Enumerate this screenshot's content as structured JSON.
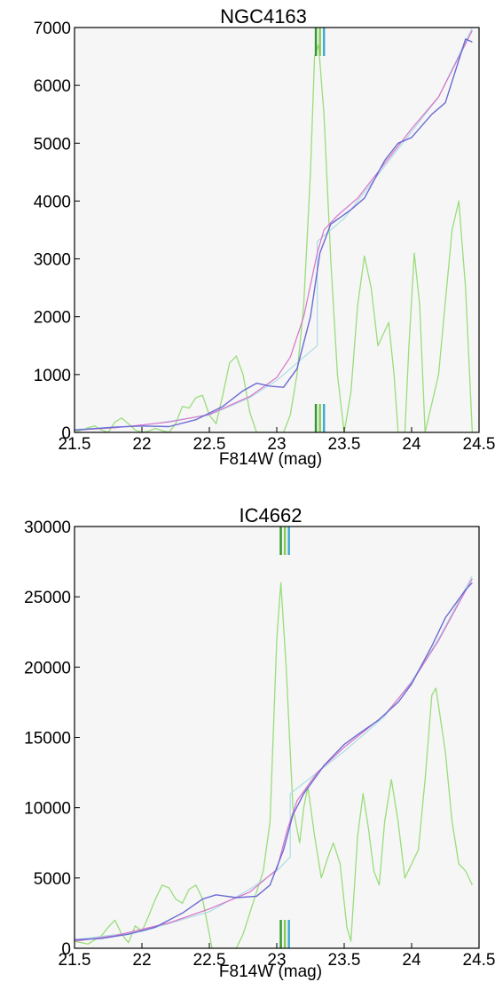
{
  "chart_data": [
    {
      "type": "line",
      "title": "NGC4163",
      "xlabel": "F814W (mag)",
      "ylabel": "",
      "xlim": [
        21.5,
        24.5
      ],
      "ylim": [
        0,
        7000
      ],
      "xticks": [
        "21.5",
        "22",
        "22.5",
        "23",
        "23.5",
        "24",
        "24.5"
      ],
      "xtick_values": [
        21.5,
        22,
        22.5,
        23,
        23.5,
        24,
        24.5
      ],
      "yticks": [
        "0",
        "1000",
        "2000",
        "3000",
        "4000",
        "5000",
        "6000",
        "7000"
      ],
      "ytick_values": [
        0,
        1000,
        2000,
        3000,
        4000,
        5000,
        6000,
        7000
      ],
      "grid": false,
      "background": "#f6f6f6",
      "series": [
        {
          "color": "#99dd7a",
          "width": 1.3,
          "points": [
            [
              21.5,
              0
            ],
            [
              21.6,
              80
            ],
            [
              21.65,
              110
            ],
            [
              21.7,
              40
            ],
            [
              21.75,
              0
            ],
            [
              21.8,
              180
            ],
            [
              21.85,
              250
            ],
            [
              21.9,
              150
            ],
            [
              21.95,
              40
            ],
            [
              22.0,
              0
            ],
            [
              22.05,
              20
            ],
            [
              22.1,
              70
            ],
            [
              22.15,
              30
            ],
            [
              22.2,
              0
            ],
            [
              22.25,
              150
            ],
            [
              22.3,
              450
            ],
            [
              22.35,
              420
            ],
            [
              22.4,
              600
            ],
            [
              22.45,
              640
            ],
            [
              22.5,
              300
            ],
            [
              22.55,
              150
            ],
            [
              22.6,
              650
            ],
            [
              22.65,
              1200
            ],
            [
              22.7,
              1320
            ],
            [
              22.75,
              1000
            ],
            [
              22.8,
              350
            ],
            [
              22.85,
              0
            ],
            [
              23.05,
              0
            ],
            [
              23.1,
              300
            ],
            [
              23.15,
              1000
            ],
            [
              23.2,
              2200
            ],
            [
              23.25,
              4500
            ],
            [
              23.28,
              6500
            ],
            [
              23.31,
              6700
            ],
            [
              23.35,
              5500
            ],
            [
              23.4,
              3000
            ],
            [
              23.45,
              1000
            ],
            [
              23.5,
              0
            ],
            [
              23.55,
              700
            ],
            [
              23.6,
              2200
            ],
            [
              23.65,
              3050
            ],
            [
              23.7,
              2500
            ],
            [
              23.75,
              1500
            ],
            [
              23.8,
              1750
            ],
            [
              23.83,
              1900
            ],
            [
              23.87,
              1000
            ],
            [
              23.9,
              0
            ],
            [
              23.95,
              0
            ],
            [
              23.98,
              1500
            ],
            [
              24.02,
              3100
            ],
            [
              24.06,
              2200
            ],
            [
              24.1,
              0
            ],
            [
              24.2,
              1000
            ],
            [
              24.3,
              3500
            ],
            [
              24.35,
              4000
            ],
            [
              24.4,
              2500
            ],
            [
              24.45,
              0
            ]
          ]
        },
        {
          "color": "#aadde6",
          "width": 1.2,
          "points": [
            [
              21.5,
              50
            ],
            [
              22.0,
              120
            ],
            [
              22.5,
              300
            ],
            [
              22.8,
              600
            ],
            [
              23.0,
              900
            ],
            [
              23.2,
              1300
            ],
            [
              23.3,
              1500
            ],
            [
              23.3,
              3300
            ],
            [
              23.4,
              3500
            ],
            [
              23.5,
              3700
            ],
            [
              23.6,
              4000
            ],
            [
              23.8,
              4600
            ],
            [
              24.0,
              5200
            ],
            [
              24.2,
              5800
            ],
            [
              24.45,
              7000
            ]
          ]
        },
        {
          "color": "#d873c8",
          "width": 1.2,
          "points": [
            [
              21.5,
              40
            ],
            [
              21.8,
              80
            ],
            [
              22.2,
              180
            ],
            [
              22.5,
              310
            ],
            [
              22.8,
              620
            ],
            [
              23.0,
              950
            ],
            [
              23.1,
              1300
            ],
            [
              23.2,
              2000
            ],
            [
              23.3,
              3100
            ],
            [
              23.35,
              3500
            ],
            [
              23.45,
              3750
            ],
            [
              23.6,
              4050
            ],
            [
              23.8,
              4650
            ],
            [
              24.0,
              5250
            ],
            [
              24.2,
              5800
            ],
            [
              24.45,
              6950
            ]
          ]
        },
        {
          "color": "#6b6bd4",
          "width": 1.4,
          "points": [
            [
              21.5,
              40
            ],
            [
              21.8,
              90
            ],
            [
              22.0,
              110
            ],
            [
              22.2,
              100
            ],
            [
              22.4,
              220
            ],
            [
              22.6,
              450
            ],
            [
              22.75,
              720
            ],
            [
              22.85,
              850
            ],
            [
              22.95,
              800
            ],
            [
              23.05,
              780
            ],
            [
              23.15,
              1100
            ],
            [
              23.25,
              2000
            ],
            [
              23.32,
              3100
            ],
            [
              23.4,
              3600
            ],
            [
              23.55,
              3850
            ],
            [
              23.65,
              4050
            ],
            [
              23.8,
              4700
            ],
            [
              23.9,
              5000
            ],
            [
              24.0,
              5100
            ],
            [
              24.15,
              5500
            ],
            [
              24.25,
              5700
            ],
            [
              24.4,
              6800
            ],
            [
              24.45,
              6750
            ]
          ]
        }
      ],
      "markers": [
        {
          "x": 23.29,
          "color": "#339933"
        },
        {
          "x": 23.32,
          "color": "#88cc55"
        },
        {
          "x": 23.35,
          "color": "#44aacc"
        }
      ]
    },
    {
      "type": "line",
      "title": "IC4662",
      "xlabel": "F814W (mag)",
      "ylabel": "",
      "xlim": [
        21.5,
        24.5
      ],
      "ylim": [
        0,
        30000
      ],
      "xticks": [
        "21.5",
        "22",
        "22.5",
        "23",
        "23.5",
        "24",
        "24.5"
      ],
      "xtick_values": [
        21.5,
        22,
        22.5,
        23,
        23.5,
        24,
        24.5
      ],
      "yticks": [
        "0",
        "5000",
        "10000",
        "15000",
        "20000",
        "25000",
        "30000"
      ],
      "ytick_values": [
        0,
        5000,
        10000,
        15000,
        20000,
        25000,
        30000
      ],
      "grid": false,
      "background": "#f6f6f6",
      "series": [
        {
          "color": "#99dd7a",
          "width": 1.3,
          "points": [
            [
              21.5,
              500
            ],
            [
              21.6,
              300
            ],
            [
              21.7,
              900
            ],
            [
              21.75,
              1500
            ],
            [
              21.8,
              2000
            ],
            [
              21.85,
              1000
            ],
            [
              21.9,
              400
            ],
            [
              21.95,
              1600
            ],
            [
              22.0,
              1200
            ],
            [
              22.05,
              2300
            ],
            [
              22.1,
              3500
            ],
            [
              22.15,
              4500
            ],
            [
              22.2,
              4300
            ],
            [
              22.25,
              3500
            ],
            [
              22.3,
              3200
            ],
            [
              22.35,
              4200
            ],
            [
              22.4,
              4500
            ],
            [
              22.45,
              3500
            ],
            [
              22.5,
              1000
            ],
            [
              22.52,
              0
            ],
            [
              22.7,
              0
            ],
            [
              22.75,
              1000
            ],
            [
              22.85,
              4000
            ],
            [
              22.9,
              5500
            ],
            [
              22.95,
              9000
            ],
            [
              23.0,
              22000
            ],
            [
              23.03,
              26000
            ],
            [
              23.07,
              20000
            ],
            [
              23.12,
              10000
            ],
            [
              23.17,
              7500
            ],
            [
              23.2,
              10000
            ],
            [
              23.23,
              11500
            ],
            [
              23.28,
              8000
            ],
            [
              23.33,
              5000
            ],
            [
              23.38,
              6500
            ],
            [
              23.42,
              7500
            ],
            [
              23.47,
              6000
            ],
            [
              23.52,
              1500
            ],
            [
              23.55,
              500
            ],
            [
              23.6,
              8000
            ],
            [
              23.64,
              11000
            ],
            [
              23.68,
              8500
            ],
            [
              23.72,
              5500
            ],
            [
              23.76,
              4500
            ],
            [
              23.8,
              9000
            ],
            [
              23.85,
              12000
            ],
            [
              23.9,
              9000
            ],
            [
              23.95,
              5000
            ],
            [
              24.0,
              6000
            ],
            [
              24.05,
              7000
            ],
            [
              24.1,
              12000
            ],
            [
              24.15,
              18000
            ],
            [
              24.18,
              18500
            ],
            [
              24.25,
              14000
            ],
            [
              24.3,
              9000
            ],
            [
              24.35,
              6000
            ],
            [
              24.4,
              5500
            ],
            [
              24.45,
              4500
            ]
          ]
        },
        {
          "color": "#aadde6",
          "width": 1.2,
          "points": [
            [
              21.5,
              600
            ],
            [
              22.0,
              1200
            ],
            [
              22.5,
              2600
            ],
            [
              22.8,
              4200
            ],
            [
              23.0,
              5500
            ],
            [
              23.1,
              6500
            ],
            [
              23.1,
              11000
            ],
            [
              23.3,
              12500
            ],
            [
              23.5,
              14000
            ],
            [
              23.8,
              16500
            ],
            [
              24.0,
              19000
            ],
            [
              24.2,
              22000
            ],
            [
              24.45,
              26500
            ]
          ]
        },
        {
          "color": "#d873c8",
          "width": 1.2,
          "points": [
            [
              21.5,
              500
            ],
            [
              21.8,
              900
            ],
            [
              22.2,
              1800
            ],
            [
              22.5,
              2800
            ],
            [
              22.8,
              4000
            ],
            [
              23.0,
              5600
            ],
            [
              23.08,
              8500
            ],
            [
              23.15,
              10500
            ],
            [
              23.3,
              12500
            ],
            [
              23.5,
              14300
            ],
            [
              23.8,
              16600
            ],
            [
              24.0,
              18900
            ],
            [
              24.2,
              21900
            ],
            [
              24.45,
              26300
            ]
          ]
        },
        {
          "color": "#6b6bd4",
          "width": 1.4,
          "points": [
            [
              21.5,
              600
            ],
            [
              21.7,
              700
            ],
            [
              21.9,
              1000
            ],
            [
              22.1,
              1500
            ],
            [
              22.3,
              2500
            ],
            [
              22.45,
              3500
            ],
            [
              22.55,
              3800
            ],
            [
              22.7,
              3600
            ],
            [
              22.85,
              3700
            ],
            [
              22.95,
              4500
            ],
            [
              23.05,
              7000
            ],
            [
              23.12,
              9500
            ],
            [
              23.2,
              11000
            ],
            [
              23.35,
              13000
            ],
            [
              23.5,
              14500
            ],
            [
              23.6,
              15200
            ],
            [
              23.75,
              16200
            ],
            [
              23.9,
              17500
            ],
            [
              24.0,
              18800
            ],
            [
              24.15,
              21500
            ],
            [
              24.25,
              23500
            ],
            [
              24.4,
              25500
            ],
            [
              24.45,
              26000
            ]
          ]
        }
      ],
      "markers": [
        {
          "x": 23.03,
          "color": "#339933"
        },
        {
          "x": 23.06,
          "color": "#88cc55"
        },
        {
          "x": 23.09,
          "color": "#44aacc"
        }
      ]
    }
  ]
}
